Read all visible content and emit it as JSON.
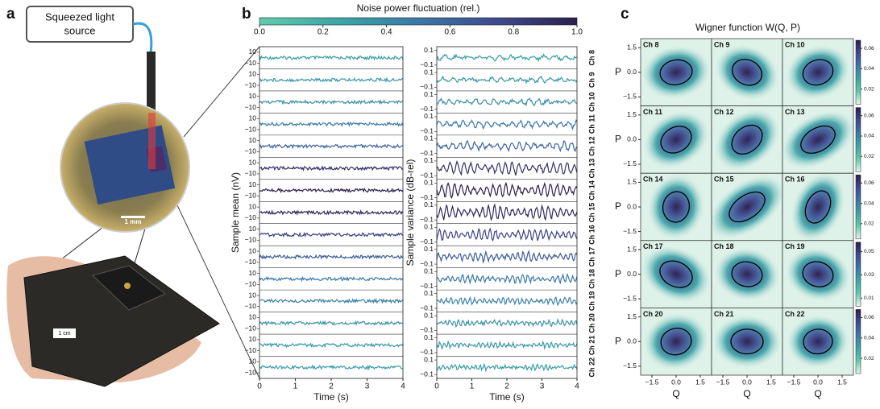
{
  "panel_a": {
    "label": "a",
    "source_label": [
      "Squeezed light",
      "source"
    ],
    "scale_chip": "1 mm",
    "scale_board": "1 cm"
  },
  "chart_data": [
    {
      "type": "line",
      "panel": "b",
      "colorbar_label": "Noise power fluctuation (rel.)",
      "colorbar_lim": [
        0,
        1
      ],
      "colorbar_ticks": [
        {
          "value": 0,
          "label": "0.0"
        },
        0.2,
        0.4,
        0.6,
        0.8,
        {
          "value": 1,
          "label": "1.0"
        }
      ],
      "colormap": [
        "#62cbab",
        "#3aa6a6",
        "#3a78a8",
        "#3f4a8e",
        "#2b1f4e"
      ],
      "channels": [
        "Ch 8",
        "Ch 9",
        "Ch 10",
        "Ch 11",
        "Ch 12",
        "Ch 13",
        "Ch 14",
        "Ch 15",
        "Ch 16",
        "Ch 17",
        "Ch 18",
        "Ch 19",
        "Ch 20",
        "Ch 21",
        "Ch 22"
      ],
      "fluctuation": [
        0.3,
        0.32,
        0.38,
        0.5,
        0.6,
        0.9,
        1,
        0.95,
        0.8,
        0.65,
        0.5,
        0.45,
        0.35,
        0.33,
        0.3
      ],
      "xlabel": "Time (s)",
      "xlim": [
        0,
        4
      ],
      "xticks": [
        0,
        1,
        2,
        3,
        4
      ],
      "mean_ylabel": "Sample mean (nV)",
      "mean_ylim": [
        -20,
        20
      ],
      "mean_yticks": [
        10,
        {
          "value": -10,
          "label": "−10"
        }
      ],
      "var_ylabel": "Sample variance (dB-rel)",
      "var_ylim": [
        -0.15,
        0.15
      ],
      "var_yticks": [
        0.1,
        {
          "value": -0.1,
          "label": "−0.1"
        }
      ]
    },
    {
      "type": "contour",
      "panel": "c",
      "title": "Wigner function W(Q, P)",
      "channels": [
        "Ch 8",
        "Ch 9",
        "Ch 10",
        "Ch 11",
        "Ch 12",
        "Ch 13",
        "Ch 14",
        "Ch 15",
        "Ch 16",
        "Ch 17",
        "Ch 18",
        "Ch 19",
        "Ch 20",
        "Ch 21",
        "Ch 22"
      ],
      "xlabel": "Q",
      "ylabel": "P",
      "xlim": [
        -2.2,
        2.2
      ],
      "ylim": [
        -2.05,
        2.05
      ],
      "xticks": [
        {
          "value": -1.5,
          "label": "−1.5"
        },
        {
          "value": 0,
          "label": "0.0"
        },
        {
          "value": 1.5,
          "label": "1.5"
        }
      ],
      "yticks": [
        {
          "value": -1.5,
          "label": "−1.5"
        },
        {
          "value": 0,
          "label": "0.0"
        },
        {
          "value": 1.5,
          "label": "1.5"
        }
      ],
      "ellipse_width": [
        1.0,
        0.95,
        0.95,
        1.0,
        1.05,
        1.15,
        0.95,
        1.25,
        1.05,
        1.05,
        0.95,
        0.95,
        0.95,
        1.0,
        0.9
      ],
      "ellipse_height": [
        0.75,
        0.75,
        0.75,
        0.75,
        0.75,
        0.7,
        0.8,
        0.7,
        0.7,
        0.75,
        0.75,
        0.75,
        0.8,
        0.75,
        0.75
      ],
      "ellipse_angle": [
        10,
        -25,
        20,
        30,
        40,
        30,
        80,
        35,
        65,
        -25,
        -10,
        -15,
        15,
        0,
        5
      ],
      "colorbars": [
        {
          "lim": [
            0.005,
            0.068
          ],
          "ticks": [
            0.02,
            0.04,
            0.06
          ]
        },
        {
          "lim": [
            0.005,
            0.068
          ],
          "ticks": [
            0.02,
            0.04,
            0.06
          ]
        },
        {
          "lim": [
            0.005,
            0.068
          ],
          "ticks": [
            0.02,
            0.04,
            0.06
          ]
        },
        {
          "lim": [
            0.003,
            0.058
          ],
          "ticks": [
            0.01,
            0.03,
            0.05
          ]
        },
        {
          "lim": [
            0.005,
            0.068
          ],
          "ticks": [
            0.02,
            0.04,
            0.06
          ]
        }
      ]
    }
  ]
}
